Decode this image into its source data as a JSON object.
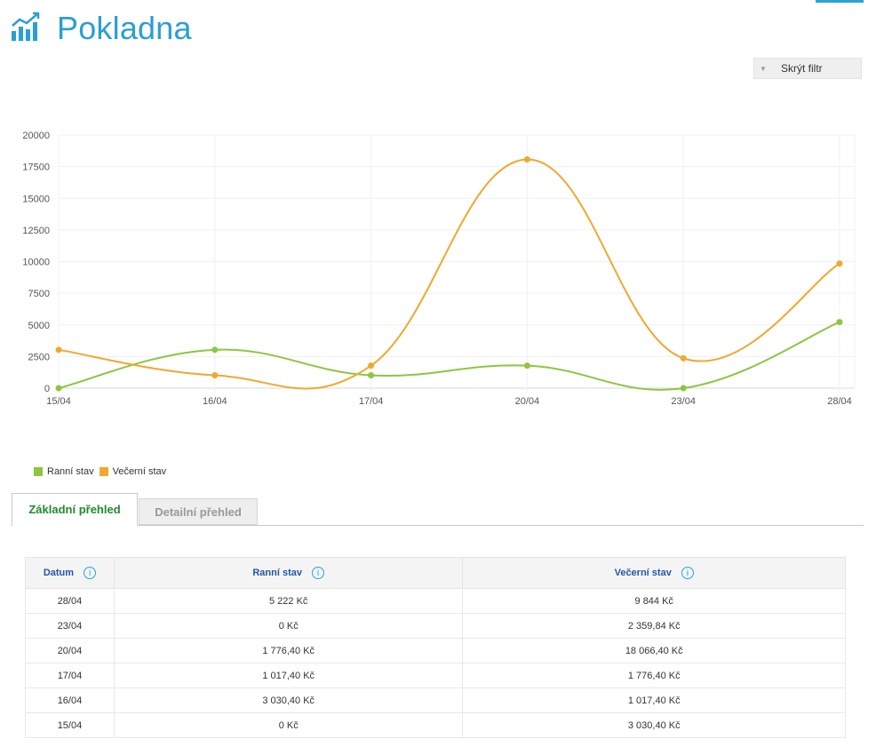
{
  "page": {
    "title": "Pokladna",
    "icon": "bar-chart-icon"
  },
  "filter": {
    "label": "Skrýt filtr",
    "icon": "caret-down-icon"
  },
  "chart_data": {
    "type": "line",
    "categories": [
      "15/04",
      "16/04",
      "17/04",
      "20/04",
      "23/04",
      "28/04"
    ],
    "series": [
      {
        "name": "Ranní stav",
        "color": "#8dc63f",
        "values": [
          0,
          3030.4,
          1017.4,
          1776.4,
          0,
          5222
        ]
      },
      {
        "name": "Večerní stav",
        "color": "#f0a830",
        "values": [
          3030.4,
          1017.4,
          1776.4,
          18066.4,
          2359.84,
          9844
        ]
      }
    ],
    "y_ticks": [
      "0",
      "2500",
      "5000",
      "7500",
      "10000",
      "12500",
      "15000",
      "17500",
      "20000"
    ],
    "ylim": [
      0,
      20000
    ],
    "grid": true,
    "legend": "bottom-left"
  },
  "tabs": [
    {
      "label": "Základní přehled",
      "active": true
    },
    {
      "label": "Detailní přehled",
      "active": false
    }
  ],
  "table": {
    "headers": {
      "date": "Datum",
      "morning": "Ranní stav",
      "evening": "Večerní stav",
      "info_glyph": "i"
    },
    "rows": [
      {
        "date": "28/04",
        "morning": "5 222 Kč",
        "evening": "9 844 Kč"
      },
      {
        "date": "23/04",
        "morning": "0 Kč",
        "evening": "2 359,84 Kč"
      },
      {
        "date": "20/04",
        "morning": "1 776,40 Kč",
        "evening": "18 066,40 Kč"
      },
      {
        "date": "17/04",
        "morning": "1 017,40 Kč",
        "evening": "1 776,40 Kč"
      },
      {
        "date": "16/04",
        "morning": "3 030,40 Kč",
        "evening": "1 017,40 Kč"
      },
      {
        "date": "15/04",
        "morning": "0 Kč",
        "evening": "3 030,40 Kč"
      }
    ]
  }
}
